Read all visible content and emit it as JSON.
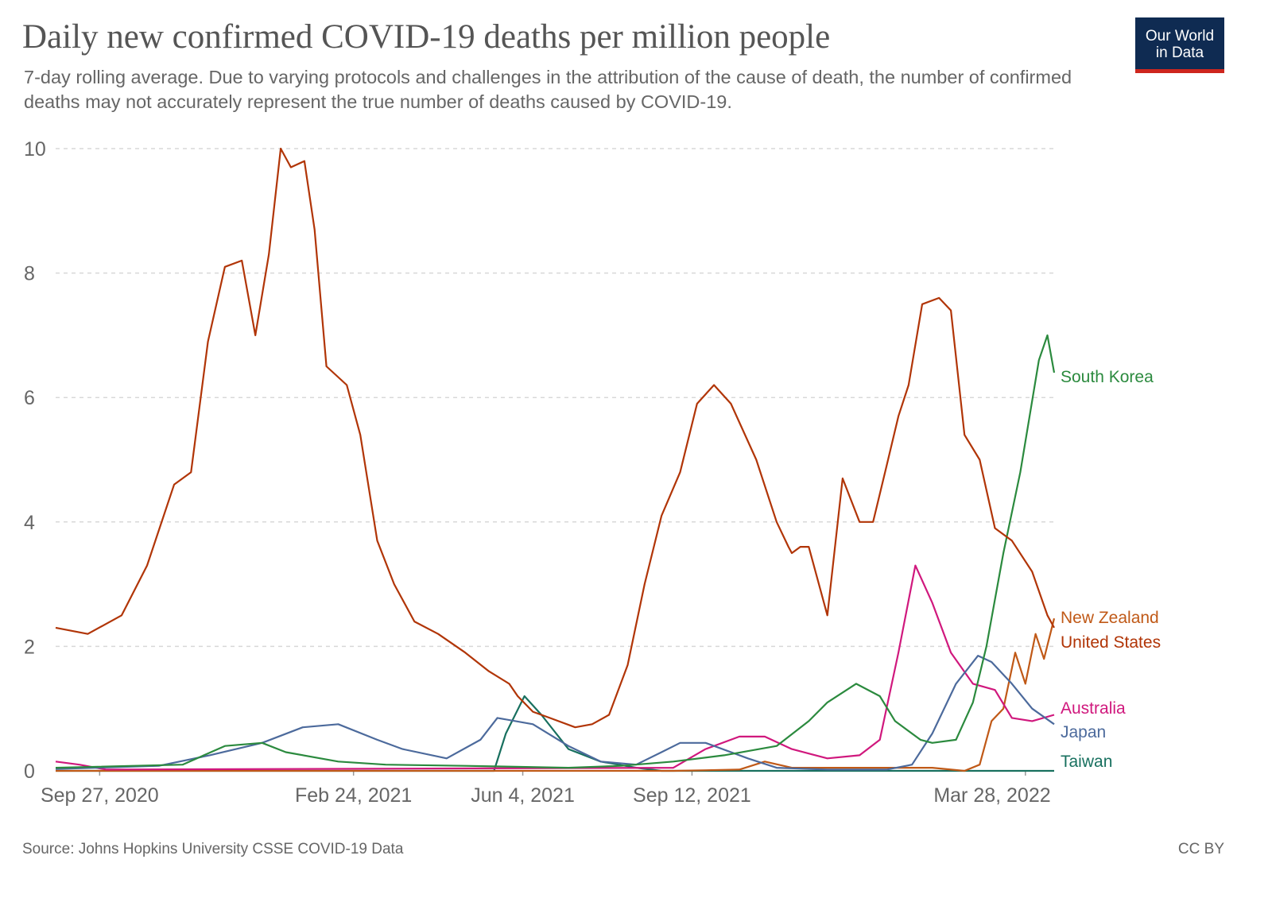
{
  "title": "Daily new confirmed COVID-19 deaths per million people",
  "subtitle": "7-day rolling average. Due to varying protocols and challenges in the attribution of the cause of death, the number of confirmed deaths may not accurately represent the true number of deaths caused by COVID-19.",
  "logo": {
    "line1": "Our World",
    "line2": "in Data"
  },
  "footer": {
    "source": "Source: Johns Hopkins University CSSE COVID-19 Data",
    "license": "CC BY"
  },
  "chart_data": {
    "type": "line",
    "title": "Daily new confirmed COVID-19 deaths per million people",
    "xlabel": "",
    "ylabel": "",
    "xlim": [
      "2020-09-01",
      "2022-04-14"
    ],
    "ylim": [
      0,
      10
    ],
    "y_ticks": [
      0,
      2,
      4,
      6,
      8,
      10
    ],
    "x_tick_labels": [
      "Sep 27, 2020",
      "Feb 24, 2021",
      "Jun 4, 2021",
      "Sep 12, 2021",
      "Mar 28, 2022"
    ],
    "x_tick_dates": [
      "2020-09-27",
      "2021-02-24",
      "2021-06-04",
      "2021-09-12",
      "2022-03-28"
    ],
    "grid": true,
    "series": [
      {
        "name": "United States",
        "color": "#b13507",
        "x": [
          "2020-09-01",
          "2020-09-20",
          "2020-10-10",
          "2020-10-25",
          "2020-11-10",
          "2020-11-20",
          "2020-11-30",
          "2020-12-10",
          "2020-12-20",
          "2020-12-28",
          "2021-01-05",
          "2021-01-12",
          "2021-01-18",
          "2021-01-26",
          "2021-02-01",
          "2021-02-08",
          "2021-02-20",
          "2021-02-28",
          "2021-03-10",
          "2021-03-20",
          "2021-04-01",
          "2021-04-15",
          "2021-05-01",
          "2021-05-15",
          "2021-05-27",
          "2021-06-01",
          "2021-06-10",
          "2021-06-20",
          "2021-07-05",
          "2021-07-15",
          "2021-07-25",
          "2021-08-05",
          "2021-08-15",
          "2021-08-25",
          "2021-09-05",
          "2021-09-15",
          "2021-09-25",
          "2021-10-05",
          "2021-10-20",
          "2021-11-01",
          "2021-11-08",
          "2021-11-10",
          "2021-11-15",
          "2021-11-20",
          "2021-12-01",
          "2021-12-10",
          "2021-12-20",
          "2021-12-28",
          "2022-01-05",
          "2022-01-12",
          "2022-01-18",
          "2022-01-26",
          "2022-02-05",
          "2022-02-12",
          "2022-02-20",
          "2022-03-01",
          "2022-03-10",
          "2022-03-20",
          "2022-04-01",
          "2022-04-10",
          "2022-04-14"
        ],
        "y": [
          2.3,
          2.2,
          2.5,
          3.3,
          4.6,
          4.8,
          6.9,
          8.1,
          8.2,
          7.0,
          8.3,
          10.0,
          9.7,
          9.8,
          8.7,
          6.5,
          6.2,
          5.4,
          3.7,
          3.0,
          2.4,
          2.2,
          1.9,
          1.6,
          1.4,
          1.2,
          0.95,
          0.85,
          0.7,
          0.75,
          0.9,
          1.7,
          3.0,
          4.1,
          4.8,
          5.9,
          6.2,
          5.9,
          5.0,
          4.0,
          3.6,
          3.5,
          3.6,
          3.6,
          2.5,
          4.7,
          4.0,
          4.0,
          4.9,
          5.7,
          6.2,
          7.5,
          7.6,
          7.4,
          5.4,
          5.0,
          3.9,
          3.7,
          3.2,
          2.5,
          2.3
        ]
      },
      {
        "name": "South Korea",
        "color": "#2b8a3e",
        "x": [
          "2020-09-01",
          "2020-11-15",
          "2020-12-10",
          "2021-01-01",
          "2021-01-15",
          "2021-02-15",
          "2021-03-15",
          "2021-05-01",
          "2021-07-01",
          "2021-08-01",
          "2021-09-01",
          "2021-10-01",
          "2021-11-01",
          "2021-11-20",
          "2021-12-01",
          "2021-12-18",
          "2022-01-01",
          "2022-01-10",
          "2022-01-25",
          "2022-02-01",
          "2022-02-15",
          "2022-02-25",
          "2022-03-05",
          "2022-03-15",
          "2022-03-25",
          "2022-04-05",
          "2022-04-10",
          "2022-04-14"
        ],
        "y": [
          0.05,
          0.1,
          0.4,
          0.45,
          0.3,
          0.15,
          0.1,
          0.08,
          0.05,
          0.08,
          0.15,
          0.25,
          0.4,
          0.8,
          1.1,
          1.4,
          1.2,
          0.8,
          0.5,
          0.45,
          0.5,
          1.1,
          2.0,
          3.5,
          4.8,
          6.6,
          7.0,
          6.4
        ]
      },
      {
        "name": "Japan",
        "color": "#4c6a9c",
        "x": [
          "2020-09-01",
          "2020-11-01",
          "2020-12-01",
          "2021-01-01",
          "2021-01-25",
          "2021-02-15",
          "2021-03-10",
          "2021-03-25",
          "2021-04-20",
          "2021-05-10",
          "2021-05-20",
          "2021-06-10",
          "2021-07-01",
          "2021-07-20",
          "2021-08-10",
          "2021-08-25",
          "2021-09-05",
          "2021-09-20",
          "2021-10-15",
          "2021-11-01",
          "2021-12-01",
          "2022-01-05",
          "2022-01-20",
          "2022-02-01",
          "2022-02-15",
          "2022-02-28",
          "2022-03-08",
          "2022-03-20",
          "2022-04-01",
          "2022-04-14"
        ],
        "y": [
          0.03,
          0.08,
          0.25,
          0.45,
          0.7,
          0.75,
          0.5,
          0.35,
          0.2,
          0.5,
          0.85,
          0.75,
          0.4,
          0.15,
          0.1,
          0.3,
          0.45,
          0.45,
          0.2,
          0.05,
          0.02,
          0.02,
          0.1,
          0.6,
          1.4,
          1.85,
          1.75,
          1.4,
          1.0,
          0.75
        ]
      },
      {
        "name": "Australia",
        "color": "#d0187d",
        "x": [
          "2020-09-01",
          "2020-09-15",
          "2020-10-01",
          "2021-09-01",
          "2021-09-20",
          "2021-10-10",
          "2021-10-25",
          "2021-11-10",
          "2021-12-01",
          "2021-12-20",
          "2022-01-01",
          "2022-01-12",
          "2022-01-22",
          "2022-02-01",
          "2022-02-12",
          "2022-02-25",
          "2022-03-10",
          "2022-03-20",
          "2022-04-01",
          "2022-04-14"
        ],
        "y": [
          0.15,
          0.1,
          0.02,
          0.05,
          0.35,
          0.55,
          0.55,
          0.35,
          0.2,
          0.25,
          0.5,
          1.9,
          3.3,
          2.7,
          1.9,
          1.4,
          1.3,
          0.85,
          0.8,
          0.9
        ]
      },
      {
        "name": "New Zealand",
        "color": "#c05917",
        "x": [
          "2020-09-01",
          "2021-09-01",
          "2021-10-10",
          "2021-10-25",
          "2021-11-10",
          "2022-02-01",
          "2022-02-20",
          "2022-03-01",
          "2022-03-08",
          "2022-03-15",
          "2022-03-22",
          "2022-03-28",
          "2022-04-03",
          "2022-04-08",
          "2022-04-14"
        ],
        "y": [
          0.0,
          0.0,
          0.02,
          0.15,
          0.05,
          0.05,
          0.0,
          0.1,
          0.8,
          1.0,
          1.9,
          1.4,
          2.2,
          1.8,
          2.45
        ]
      },
      {
        "name": "Taiwan",
        "color": "#18705f",
        "x": [
          "2020-09-01",
          "2021-05-18",
          "2021-05-25",
          "2021-06-05",
          "2021-06-15",
          "2021-07-01",
          "2021-07-20",
          "2021-08-10",
          "2021-08-25",
          "2022-04-14"
        ],
        "y": [
          0.0,
          0.0,
          0.6,
          1.2,
          0.9,
          0.35,
          0.15,
          0.05,
          0.0,
          0.0
        ]
      }
    ]
  }
}
